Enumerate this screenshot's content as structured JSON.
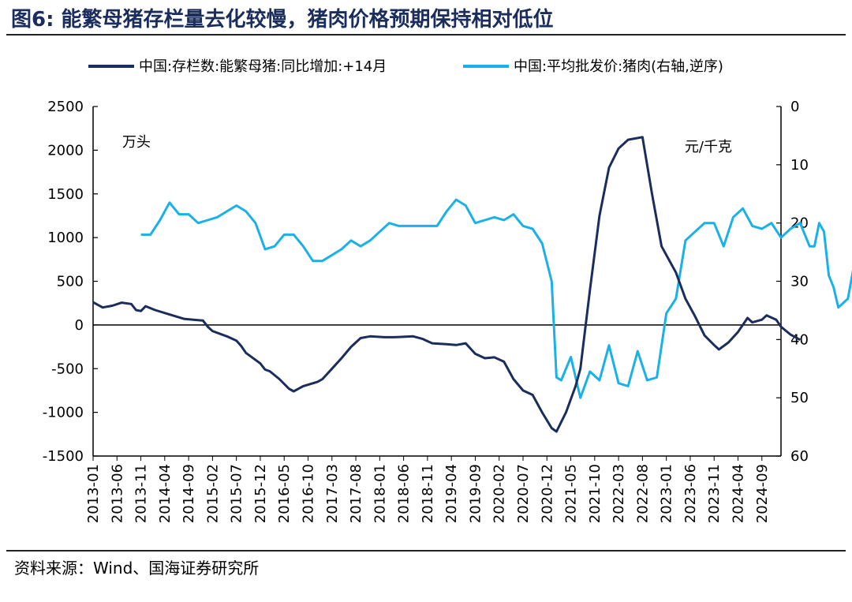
{
  "figure": {
    "title": "图6:  能繁母猪存栏量去化较慢，猪肉价格预期保持相对低位",
    "source": "资料来源：Wind、国海证券研究所"
  },
  "chart_data": {
    "type": "line",
    "x_ticks": [
      "2013-01",
      "2013-06",
      "2013-11",
      "2014-04",
      "2014-09",
      "2015-02",
      "2015-07",
      "2015-12",
      "2016-05",
      "2016-10",
      "2017-03",
      "2017-08",
      "2018-01",
      "2018-06",
      "2018-11",
      "2019-04",
      "2019-09",
      "2020-02",
      "2020-07",
      "2020-12",
      "2021-05",
      "2021-10",
      "2022-03",
      "2022-08",
      "2023-01",
      "2023-06",
      "2023-11",
      "2024-04",
      "2024-09"
    ],
    "x_start": "2013-01",
    "x_end": "2025-01",
    "left_axis": {
      "unit": "万头",
      "min": -1500,
      "max": 2500,
      "ticks": [
        -1500,
        -1000,
        -500,
        0,
        500,
        1000,
        1500,
        2000,
        2500
      ]
    },
    "right_axis": {
      "unit": "元/千克",
      "min": 0,
      "max": 60,
      "reversed": true,
      "ticks": [
        0,
        10,
        20,
        30,
        40,
        50,
        60
      ]
    },
    "colors": {
      "sow": "#1a2d5c",
      "pork": "#1ab0e8",
      "axis": "#000000"
    },
    "legend_position": "top",
    "series": [
      {
        "name": "中国:存栏数:能繁母猪:同比增加:+14月",
        "axis": "left",
        "points": [
          [
            "2013-01",
            260
          ],
          [
            "2013-03",
            200
          ],
          [
            "2013-05",
            220
          ],
          [
            "2013-07",
            255
          ],
          [
            "2013-09",
            240
          ],
          [
            "2013-10",
            170
          ],
          [
            "2013-11",
            160
          ],
          [
            "2013-12",
            215
          ],
          [
            "2014-02",
            170
          ],
          [
            "2014-05",
            120
          ],
          [
            "2014-08",
            70
          ],
          [
            "2014-10",
            60
          ],
          [
            "2014-12",
            50
          ],
          [
            "2015-01",
            -20
          ],
          [
            "2015-02",
            -70
          ],
          [
            "2015-05",
            -130
          ],
          [
            "2015-07",
            -180
          ],
          [
            "2015-08",
            -240
          ],
          [
            "2015-09",
            -320
          ],
          [
            "2015-12",
            -440
          ],
          [
            "2016-01",
            -510
          ],
          [
            "2016-02",
            -530
          ],
          [
            "2016-04",
            -620
          ],
          [
            "2016-06",
            -730
          ],
          [
            "2016-07",
            -760
          ],
          [
            "2016-09",
            -700
          ],
          [
            "2016-12",
            -650
          ],
          [
            "2017-01",
            -620
          ],
          [
            "2017-03",
            -500
          ],
          [
            "2017-05",
            -380
          ],
          [
            "2017-07",
            -250
          ],
          [
            "2017-09",
            -150
          ],
          [
            "2017-11",
            -130
          ],
          [
            "2018-02",
            -140
          ],
          [
            "2018-04",
            -140
          ],
          [
            "2018-08",
            -130
          ],
          [
            "2018-10",
            -160
          ],
          [
            "2018-12",
            -210
          ],
          [
            "2019-03",
            -220
          ],
          [
            "2019-05",
            -230
          ],
          [
            "2019-07",
            -210
          ],
          [
            "2019-09",
            -330
          ],
          [
            "2019-11",
            -380
          ],
          [
            "2020-01",
            -370
          ],
          [
            "2020-03",
            -420
          ],
          [
            "2020-05",
            -620
          ],
          [
            "2020-07",
            -750
          ],
          [
            "2020-09",
            -800
          ],
          [
            "2020-11",
            -1000
          ],
          [
            "2021-01",
            -1180
          ],
          [
            "2021-02",
            -1220
          ],
          [
            "2021-04",
            -1000
          ],
          [
            "2021-06",
            -700
          ],
          [
            "2021-07",
            -500
          ],
          [
            "2021-09",
            400
          ],
          [
            "2021-11",
            1250
          ],
          [
            "2022-01",
            1800
          ],
          [
            "2022-03",
            2020
          ],
          [
            "2022-05",
            2120
          ],
          [
            "2022-08",
            2150
          ],
          [
            "2022-10",
            1500
          ],
          [
            "2022-12",
            900
          ],
          [
            "2023-03",
            600
          ],
          [
            "2023-05",
            300
          ],
          [
            "2023-07",
            100
          ],
          [
            "2023-09",
            -120
          ],
          [
            "2023-11",
            -230
          ],
          [
            "2023-12",
            -280
          ],
          [
            "2024-02",
            -200
          ],
          [
            "2024-04",
            -80
          ],
          [
            "2024-06",
            80
          ],
          [
            "2024-07",
            30
          ],
          [
            "2024-09",
            60
          ],
          [
            "2024-10",
            110
          ],
          [
            "2024-12",
            60
          ],
          [
            "2025-01",
            -20
          ],
          [
            "2025-03",
            -110
          ],
          [
            "2025-05",
            -170
          ]
        ]
      },
      {
        "name": "中国:平均批发价:猪肉(右轴,逆序)",
        "axis": "right",
        "points": [
          [
            "2013-11",
            22
          ],
          [
            "2014-01",
            22
          ],
          [
            "2014-03",
            19.5
          ],
          [
            "2014-05",
            16.5
          ],
          [
            "2014-07",
            18.5
          ],
          [
            "2014-09",
            18.5
          ],
          [
            "2014-11",
            20
          ],
          [
            "2015-01",
            19.5
          ],
          [
            "2015-03",
            19
          ],
          [
            "2015-05",
            18
          ],
          [
            "2015-07",
            17
          ],
          [
            "2015-09",
            18
          ],
          [
            "2015-11",
            20
          ],
          [
            "2016-01",
            24.5
          ],
          [
            "2016-03",
            24
          ],
          [
            "2016-05",
            22
          ],
          [
            "2016-07",
            22
          ],
          [
            "2016-09",
            24
          ],
          [
            "2016-11",
            26.5
          ],
          [
            "2017-01",
            26.5
          ],
          [
            "2017-03",
            25.5
          ],
          [
            "2017-05",
            24.5
          ],
          [
            "2017-07",
            23
          ],
          [
            "2017-09",
            24
          ],
          [
            "2017-11",
            23
          ],
          [
            "2018-01",
            21.5
          ],
          [
            "2018-03",
            20
          ],
          [
            "2018-05",
            20.5
          ],
          [
            "2018-07",
            20.5
          ],
          [
            "2018-09",
            20.5
          ],
          [
            "2018-11",
            20.5
          ],
          [
            "2019-01",
            20.5
          ],
          [
            "2019-03",
            18
          ],
          [
            "2019-05",
            16
          ],
          [
            "2019-07",
            17
          ],
          [
            "2019-09",
            20
          ],
          [
            "2019-11",
            19.5
          ],
          [
            "2020-01",
            19
          ],
          [
            "2020-03",
            19.5
          ],
          [
            "2020-05",
            18.5
          ],
          [
            "2020-07",
            20.5
          ],
          [
            "2020-09",
            21
          ],
          [
            "2020-11",
            23.5
          ],
          [
            "2021-01",
            30
          ],
          [
            "2021-02",
            46.5
          ],
          [
            "2021-03",
            47
          ],
          [
            "2021-05",
            43
          ],
          [
            "2021-07",
            50
          ],
          [
            "2021-09",
            45.5
          ],
          [
            "2021-11",
            47
          ],
          [
            "2022-01",
            41
          ],
          [
            "2022-03",
            47.5
          ],
          [
            "2022-05",
            48
          ],
          [
            "2022-07",
            42
          ],
          [
            "2022-09",
            47
          ],
          [
            "2022-11",
            46.5
          ],
          [
            "2023-01",
            35.5
          ],
          [
            "2023-03",
            33
          ],
          [
            "2023-05",
            23
          ],
          [
            "2023-07",
            21.5
          ],
          [
            "2023-09",
            20
          ],
          [
            "2023-11",
            20
          ],
          [
            "2024-01",
            24
          ],
          [
            "2024-03",
            19
          ],
          [
            "2024-05",
            17.5
          ],
          [
            "2024-07",
            20.5
          ],
          [
            "2024-09",
            21
          ],
          [
            "2024-11",
            20
          ],
          [
            "2025-01",
            22.5
          ],
          [
            "2025-03",
            21
          ],
          [
            "2025-05",
            20
          ],
          [
            "2025-07",
            24
          ],
          [
            "2025-08",
            24
          ],
          [
            "2025-09",
            20
          ],
          [
            "2025-10",
            21.5
          ],
          [
            "2025-11",
            29
          ],
          [
            "2025-12",
            31
          ],
          [
            "2026-01",
            34.5
          ],
          [
            "2026-03",
            33
          ],
          [
            "2026-05",
            24
          ],
          [
            "2026-07",
            21
          ],
          [
            "2026-09",
            20
          ],
          [
            "2026-11",
            19.5
          ],
          [
            "2027-01",
            19.5
          ],
          [
            "2027-03",
            22.5
          ],
          [
            "2027-05",
            22
          ],
          [
            "2027-07",
            21
          ],
          [
            "2027-09",
            20
          ]
        ]
      }
    ]
  }
}
